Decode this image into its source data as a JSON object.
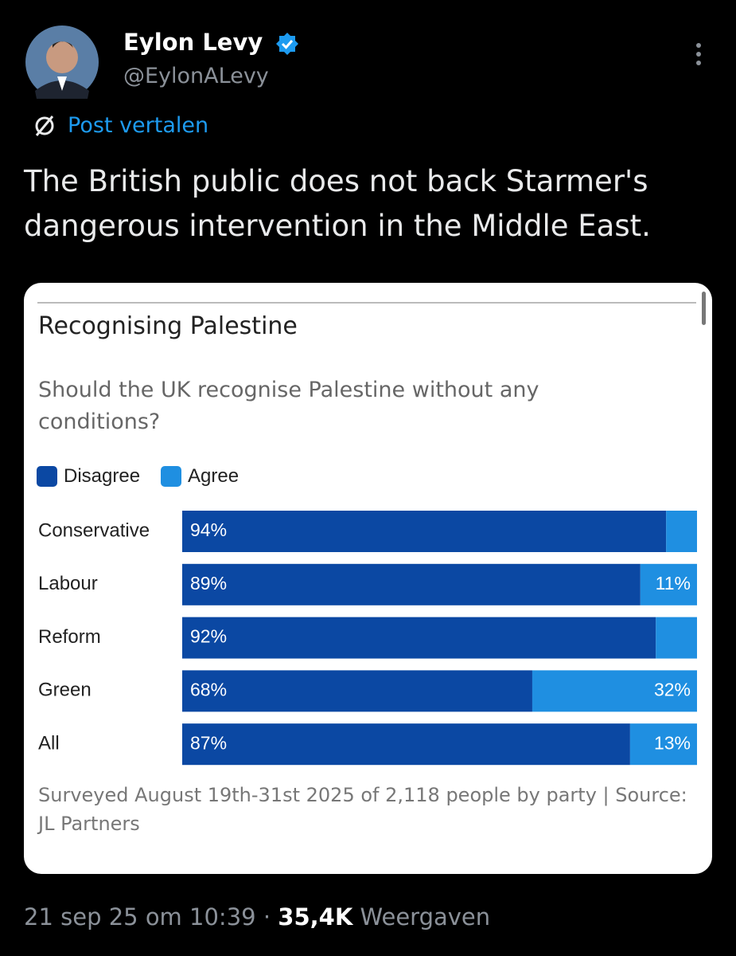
{
  "author": {
    "name": "Eylon Levy",
    "handle": "@EylonALevy"
  },
  "translate": "Post vertalen",
  "text": "The British public does not back Starmer's dangerous intervention in the Middle East.",
  "chart_data": {
    "type": "stacked-bar-horizontal",
    "title": "Recognising Palestine",
    "subtitle": "Should the UK recognise Palestine without any conditions?",
    "categories": [
      "Conservative",
      "Labour",
      "Reform",
      "Green",
      "All"
    ],
    "series": [
      {
        "name": "Disagree",
        "color": "#0b48a3",
        "values": [
          94,
          89,
          92,
          68,
          87
        ],
        "value_labels": [
          "94%",
          "89%",
          "92%",
          "68%",
          "87%"
        ]
      },
      {
        "name": "Agree",
        "color": "#1f8fe1",
        "values": [
          6,
          11,
          8,
          32,
          13
        ],
        "value_labels": [
          null,
          "11%",
          null,
          "32%",
          "13%"
        ]
      }
    ],
    "xlim": [
      0,
      100
    ],
    "note": "Surveyed August 19th-31st 2025 of 2,118 people by party | Source: JL Partners"
  },
  "footer": {
    "timestamp": "21 sep 25 om 10:39",
    "separator": "·",
    "views": "35,4K",
    "views_label": "Weergaven"
  }
}
